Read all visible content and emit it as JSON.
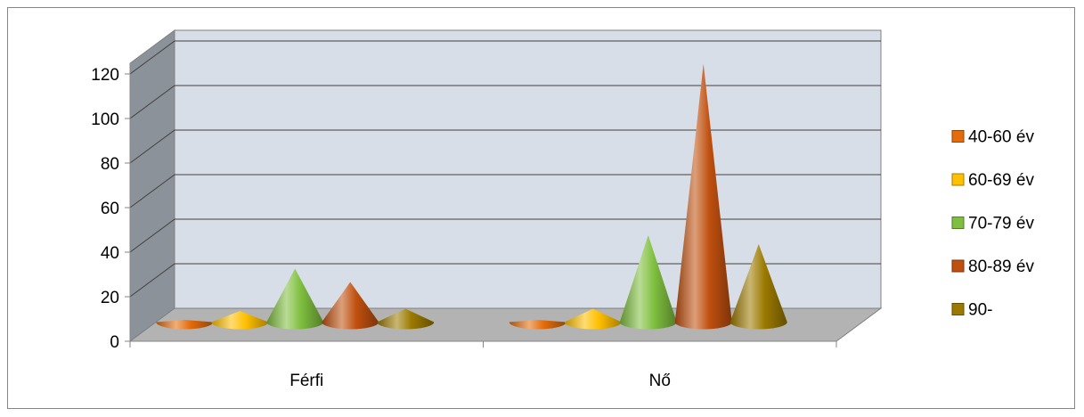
{
  "chart_data": {
    "type": "bar",
    "subtype": "3d-cone",
    "title": "",
    "xlabel": "",
    "ylabel": "",
    "categories": [
      "Férfi",
      "Nő"
    ],
    "ylim": [
      0,
      120
    ],
    "yticks": [
      0,
      20,
      40,
      60,
      80,
      100,
      120
    ],
    "grid": true,
    "legend_position": "right",
    "series": [
      {
        "name": "40-60 év",
        "color": "#E46C0A",
        "values": [
          1,
          1
        ]
      },
      {
        "name": "60-69 év",
        "color": "#FFC000",
        "values": [
          5,
          6
        ]
      },
      {
        "name": "70-79 év",
        "color": "#7FBF3F",
        "values": [
          24,
          39
        ]
      },
      {
        "name": "80-89 év",
        "color": "#C0500F",
        "values": [
          18,
          116
        ]
      },
      {
        "name": "90-",
        "color": "#9C7A00",
        "values": [
          6,
          35
        ]
      }
    ]
  }
}
